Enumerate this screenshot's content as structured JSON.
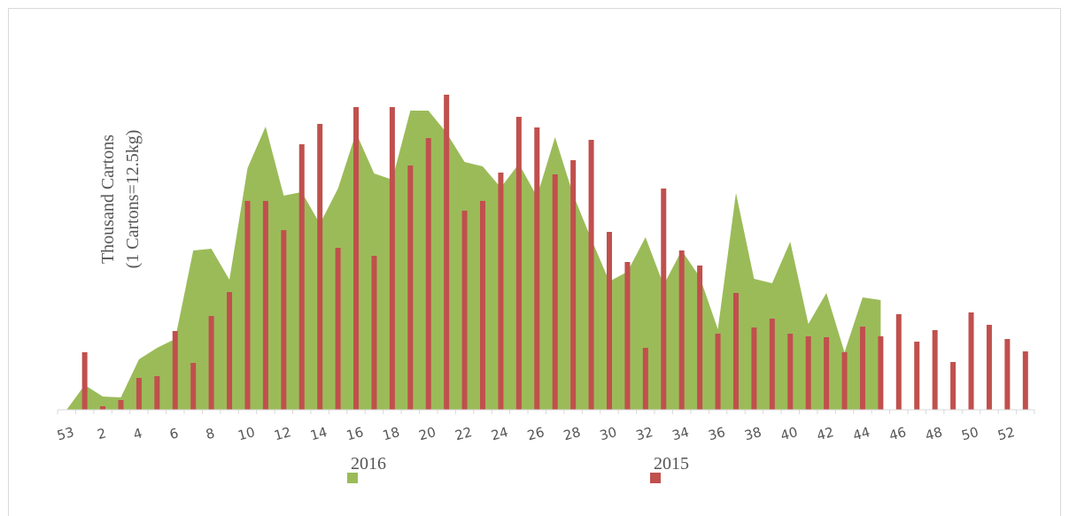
{
  "chart_data": {
    "type": "bar",
    "y_label": [
      "Thousand Cartons",
      "(1 Cartons=12.5kg)"
    ],
    "categories": [
      "53",
      null,
      "2",
      null,
      "4",
      null,
      "6",
      null,
      "8",
      null,
      "10",
      null,
      "12",
      null,
      "14",
      null,
      "16",
      null,
      "18",
      null,
      "20",
      null,
      "22",
      null,
      "24",
      null,
      "26",
      null,
      "28",
      null,
      "30",
      null,
      "32",
      null,
      "34",
      null,
      "36",
      null,
      "38",
      null,
      "40",
      null,
      "42",
      null,
      "44",
      null,
      "46",
      null,
      "48",
      null,
      "50",
      null,
      "52",
      null
    ],
    "ylim": [
      0,
      360
    ],
    "series": [
      {
        "name": "2016",
        "type": "area",
        "color": "#9bbb59",
        "values": [
          0,
          28,
          15,
          14,
          57,
          70,
          80,
          180,
          182,
          147,
          273,
          320,
          242,
          246,
          210,
          250,
          313,
          267,
          260,
          338,
          338,
          313,
          280,
          275,
          251,
          278,
          241,
          308,
          243,
          193,
          145,
          156,
          195,
          141,
          180,
          150,
          91,
          245,
          148,
          143,
          190,
          97,
          132,
          65,
          127,
          124,
          null,
          null,
          null,
          null,
          null,
          null,
          null,
          null
        ]
      },
      {
        "name": "2015",
        "type": "bar",
        "color": "#c0504d",
        "values": [
          null,
          65,
          4,
          11,
          36,
          38,
          89,
          53,
          106,
          133,
          236,
          236,
          203,
          300,
          323,
          183,
          342,
          174,
          342,
          276,
          307,
          356,
          225,
          236,
          268,
          331,
          319,
          266,
          282,
          305,
          201,
          167,
          70,
          250,
          180,
          163,
          86,
          132,
          93,
          103,
          86,
          83,
          82,
          65,
          94,
          83,
          108,
          77,
          90,
          54,
          110,
          96,
          80,
          66
        ]
      }
    ]
  }
}
